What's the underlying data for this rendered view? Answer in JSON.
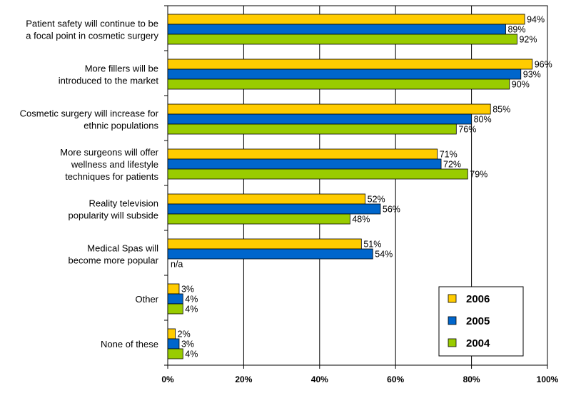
{
  "chart_data": {
    "type": "bar",
    "orientation": "horizontal",
    "categories": [
      [
        "Patient safety will continue to be",
        "a focal point in cosmetic surgery"
      ],
      [
        "More fillers will be",
        "introduced to the market"
      ],
      [
        "Cosmetic surgery will increase for",
        "ethnic populations"
      ],
      [
        "More surgeons will offer",
        "wellness and lifestyle",
        "techniques for patients"
      ],
      [
        "Reality television",
        "popularity will subside"
      ],
      [
        "Medical Spas will",
        "become more popular"
      ],
      [
        "Other"
      ],
      [
        "None of these"
      ]
    ],
    "series": [
      {
        "name": "2006",
        "color": "#FFCC00",
        "values": [
          94,
          96,
          85,
          71,
          52,
          51,
          3,
          2
        ],
        "labels": [
          "94%",
          "96%",
          "85%",
          "71%",
          "52%",
          "51%",
          "3%",
          "2%"
        ]
      },
      {
        "name": "2005",
        "color": "#0066CC",
        "values": [
          89,
          93,
          80,
          72,
          56,
          54,
          4,
          3
        ],
        "labels": [
          "89%",
          "93%",
          "80%",
          "72%",
          "56%",
          "54%",
          "4%",
          "3%"
        ]
      },
      {
        "name": "2004",
        "color": "#99CC00",
        "values": [
          92,
          90,
          76,
          79,
          48,
          null,
          4,
          4
        ],
        "labels": [
          "92%",
          "90%",
          "76%",
          "79%",
          "48%",
          "n/a",
          "4%",
          "4%"
        ]
      }
    ],
    "xlim": [
      0,
      100
    ],
    "xticks": [
      0,
      20,
      40,
      60,
      80,
      100
    ],
    "xtick_labels": [
      "0%",
      "20%",
      "40%",
      "60%",
      "80%",
      "100%"
    ],
    "grid": "vertical",
    "legend_position": "bottom-right"
  }
}
